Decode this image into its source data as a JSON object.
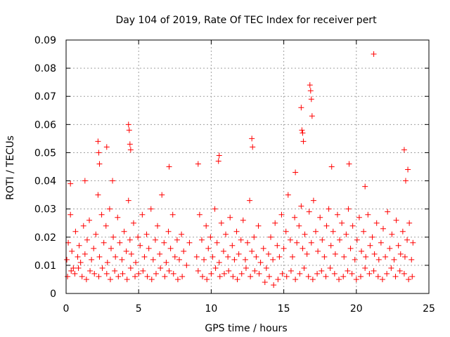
{
  "chart_data": {
    "type": "scatter",
    "title": "Day 104 of 2019, Rate Of TEC Index for receiver pert",
    "xlabel": "GPS time / hours",
    "ylabel": "ROTI / TECUs",
    "xlim": [
      0,
      25
    ],
    "ylim": [
      0,
      0.09
    ],
    "x_ticks": [
      0,
      5,
      10,
      15,
      20,
      25
    ],
    "x_tick_labels": [
      "0",
      "5",
      "10",
      "15",
      "20",
      "25"
    ],
    "y_ticks": [
      0,
      0.01,
      0.02,
      0.03,
      0.04,
      0.05,
      0.06,
      0.07,
      0.08,
      0.09
    ],
    "y_tick_labels": [
      "0",
      "0.01",
      "0.02",
      "0.03",
      "0.04",
      "0.05",
      "0.06",
      "0.07",
      "0.08",
      "0.09"
    ],
    "grid": true,
    "marker": "+",
    "color": "#ff0000",
    "series": [
      {
        "name": "ROTI",
        "x": [
          0.05,
          0.15,
          0.3,
          0.4,
          0.5,
          0.65,
          0.8,
          0.9,
          1.0,
          1.2,
          1.3,
          1.45,
          1.6,
          1.75,
          1.9,
          2.05,
          2.2,
          2.3,
          2.45,
          2.6,
          2.75,
          2.85,
          3.0,
          3.1,
          3.25,
          3.4,
          3.55,
          3.7,
          3.85,
          4.0,
          4.15,
          4.3,
          4.4,
          4.5,
          4.65,
          4.8,
          4.95,
          5.1,
          5.25,
          5.4,
          5.55,
          5.7,
          5.85,
          6.0,
          6.15,
          6.3,
          6.45,
          6.6,
          6.75,
          6.9,
          7.05,
          7.2,
          7.35,
          7.5,
          7.65,
          7.8,
          7.95,
          8.1,
          8.3,
          8.5,
          9.0,
          9.2,
          9.35,
          9.5,
          9.65,
          9.8,
          9.95,
          10.1,
          10.25,
          10.4,
          10.55,
          10.7,
          10.85,
          11.0,
          11.15,
          11.3,
          11.45,
          11.6,
          11.75,
          11.9,
          12.05,
          12.2,
          12.35,
          12.5,
          12.65,
          12.8,
          12.95,
          13.1,
          13.25,
          13.4,
          13.6,
          13.8,
          13.95,
          14.1,
          14.25,
          14.4,
          14.55,
          14.7,
          14.85,
          15.0,
          15.15,
          15.3,
          15.45,
          15.6,
          15.75,
          15.9,
          16.05,
          16.2,
          16.3,
          16.45,
          16.6,
          16.75,
          16.9,
          17.05,
          17.2,
          17.35,
          17.5,
          17.65,
          17.8,
          17.95,
          18.1,
          18.25,
          18.4,
          18.55,
          18.7,
          18.85,
          19.0,
          19.15,
          19.3,
          19.45,
          19.6,
          19.75,
          19.9,
          20.05,
          20.2,
          20.35,
          20.5,
          20.65,
          20.8,
          20.95,
          21.1,
          21.25,
          21.4,
          21.55,
          21.7,
          21.85,
          22.0,
          22.15,
          22.3,
          22.45,
          22.6,
          22.75,
          22.9,
          23.05,
          23.2,
          23.35,
          23.5,
          23.65,
          23.8,
          23.9,
          0.1,
          0.35,
          0.6,
          0.85,
          1.1,
          1.4,
          1.65,
          1.95,
          2.25,
          2.5,
          2.8,
          3.05,
          3.35,
          3.6,
          3.9,
          4.2,
          4.45,
          4.75,
          5.0,
          5.3,
          5.6,
          5.9,
          6.2,
          6.5,
          6.8,
          7.1,
          7.4,
          7.7,
          8.0,
          9.1,
          9.4,
          9.7,
          10.0,
          10.3,
          10.6,
          10.9,
          11.2,
          11.5,
          11.8,
          12.1,
          12.4,
          12.7,
          13.0,
          13.3,
          13.7,
          14.0,
          14.3,
          14.6,
          14.9,
          15.2,
          15.5,
          15.8,
          16.1,
          16.4,
          16.7,
          17.0,
          17.3,
          17.6,
          17.9,
          18.2,
          18.5,
          18.8,
          19.1,
          19.4,
          19.7,
          20.0,
          20.3,
          20.6,
          20.9,
          21.2,
          21.5,
          21.8,
          22.1,
          22.4,
          22.7,
          23.0,
          23.3,
          23.6,
          23.85,
          2.2,
          2.25,
          2.3,
          2.8,
          4.3,
          4.35,
          4.4,
          4.45,
          16.2,
          16.25,
          16.3,
          16.35,
          16.8,
          16.85,
          16.9,
          16.95,
          21.2,
          23.3,
          12.8,
          12.85,
          10.5,
          10.55,
          7.1,
          9.1,
          15.8,
          18.3,
          19.5,
          20.6,
          23.55,
          23.4,
          3.2,
          1.3,
          0.3
        ],
        "y": [
          0.012,
          0.018,
          0.028,
          0.015,
          0.009,
          0.022,
          0.013,
          0.017,
          0.011,
          0.024,
          0.014,
          0.019,
          0.026,
          0.012,
          0.016,
          0.021,
          0.035,
          0.013,
          0.028,
          0.018,
          0.024,
          0.011,
          0.03,
          0.016,
          0.02,
          0.013,
          0.027,
          0.018,
          0.012,
          0.022,
          0.015,
          0.033,
          0.019,
          0.014,
          0.025,
          0.011,
          0.02,
          0.017,
          0.028,
          0.013,
          0.021,
          0.016,
          0.03,
          0.012,
          0.019,
          0.024,
          0.014,
          0.035,
          0.018,
          0.011,
          0.022,
          0.016,
          0.028,
          0.013,
          0.019,
          0.012,
          0.021,
          0.015,
          0.01,
          0.018,
          0.013,
          0.028,
          0.019,
          0.012,
          0.024,
          0.016,
          0.02,
          0.013,
          0.03,
          0.018,
          0.011,
          0.025,
          0.015,
          0.021,
          0.013,
          0.027,
          0.017,
          0.012,
          0.022,
          0.014,
          0.019,
          0.026,
          0.012,
          0.018,
          0.033,
          0.015,
          0.02,
          0.013,
          0.024,
          0.011,
          0.016,
          0.009,
          0.014,
          0.02,
          0.012,
          0.025,
          0.017,
          0.013,
          0.028,
          0.016,
          0.022,
          0.035,
          0.019,
          0.013,
          0.027,
          0.018,
          0.024,
          0.031,
          0.016,
          0.021,
          0.014,
          0.029,
          0.018,
          0.033,
          0.022,
          0.015,
          0.027,
          0.019,
          0.013,
          0.024,
          0.03,
          0.017,
          0.022,
          0.014,
          0.028,
          0.019,
          0.025,
          0.013,
          0.021,
          0.03,
          0.016,
          0.024,
          0.012,
          0.019,
          0.027,
          0.015,
          0.022,
          0.013,
          0.028,
          0.017,
          0.02,
          0.014,
          0.025,
          0.012,
          0.018,
          0.023,
          0.013,
          0.029,
          0.016,
          0.021,
          0.012,
          0.026,
          0.017,
          0.014,
          0.022,
          0.013,
          0.019,
          0.025,
          0.012,
          0.018,
          0.006,
          0.008,
          0.007,
          0.009,
          0.006,
          0.005,
          0.008,
          0.007,
          0.006,
          0.009,
          0.007,
          0.005,
          0.008,
          0.006,
          0.007,
          0.005,
          0.009,
          0.006,
          0.007,
          0.008,
          0.006,
          0.005,
          0.007,
          0.009,
          0.006,
          0.008,
          0.007,
          0.005,
          0.006,
          0.008,
          0.006,
          0.005,
          0.007,
          0.009,
          0.006,
          0.007,
          0.008,
          0.006,
          0.005,
          0.007,
          0.009,
          0.006,
          0.008,
          0.007,
          0.004,
          0.006,
          0.003,
          0.005,
          0.007,
          0.006,
          0.008,
          0.005,
          0.007,
          0.009,
          0.006,
          0.005,
          0.007,
          0.008,
          0.006,
          0.009,
          0.007,
          0.005,
          0.006,
          0.008,
          0.007,
          0.005,
          0.006,
          0.009,
          0.007,
          0.008,
          0.006,
          0.005,
          0.007,
          0.009,
          0.006,
          0.008,
          0.007,
          0.005,
          0.006,
          0.054,
          0.05,
          0.046,
          0.052,
          0.06,
          0.058,
          0.053,
          0.051,
          0.066,
          0.058,
          0.057,
          0.054,
          0.074,
          0.072,
          0.069,
          0.063,
          0.085,
          0.051,
          0.055,
          0.052,
          0.047,
          0.049,
          0.045,
          0.046,
          0.043,
          0.045,
          0.046,
          0.038,
          0.044,
          0.04,
          0.04,
          0.04,
          0.039
        ]
      }
    ]
  }
}
